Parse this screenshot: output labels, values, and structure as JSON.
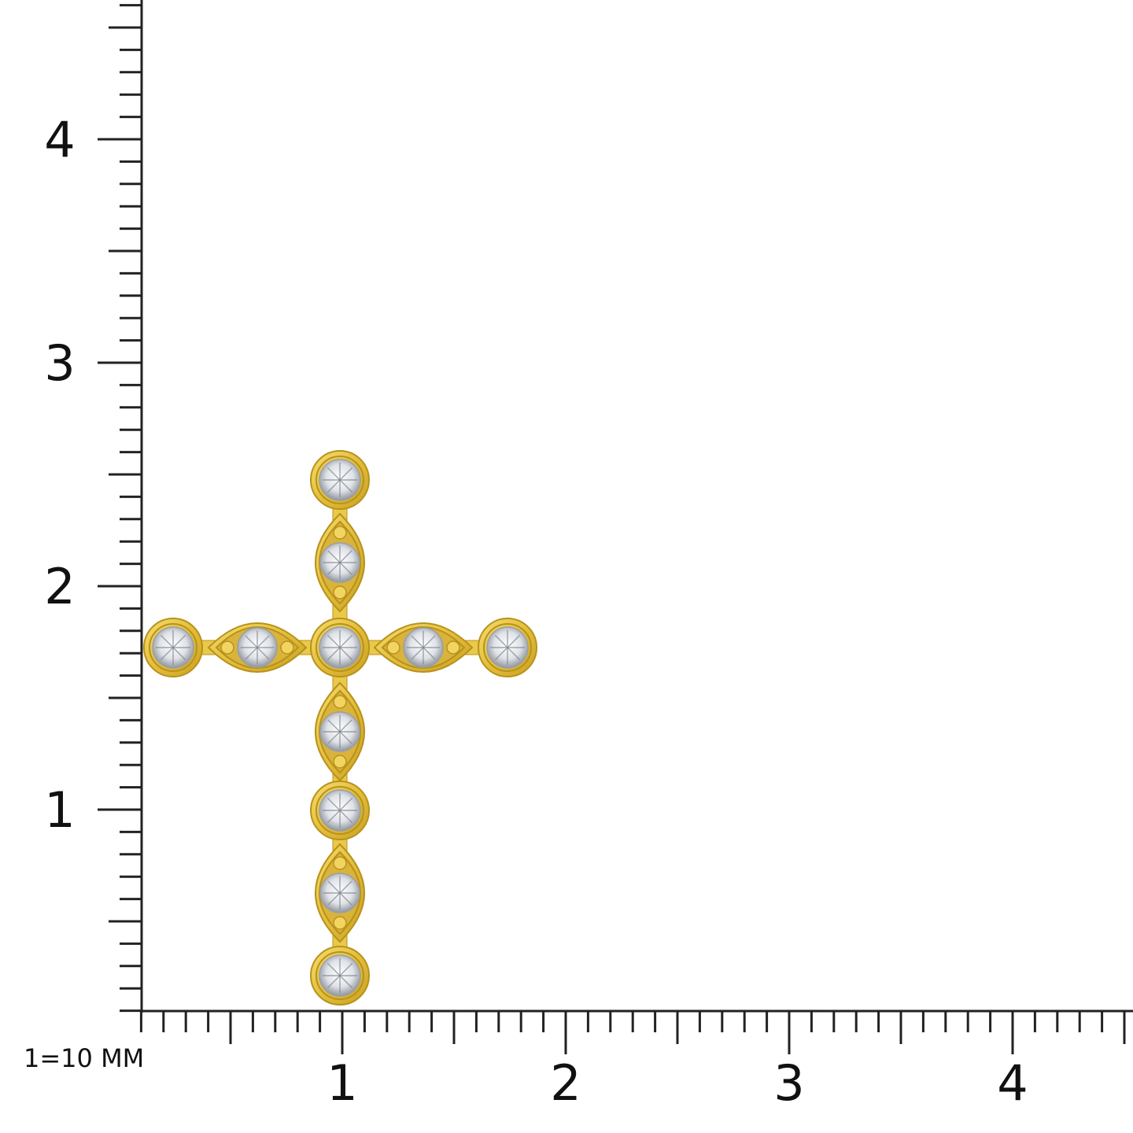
{
  "scale_note": "1=10 MM",
  "ruler": {
    "x_labels": [
      "1",
      "2",
      "3",
      "4"
    ],
    "y_labels": [
      "1",
      "2",
      "3",
      "4"
    ],
    "minor_divisions_per_unit": 10
  },
  "product": {
    "type": "cross pendant",
    "stone_count": 11,
    "metal_color": "#E9C94A",
    "metal_shadow": "#B8921C",
    "stone_color": "#E8EAEE"
  }
}
